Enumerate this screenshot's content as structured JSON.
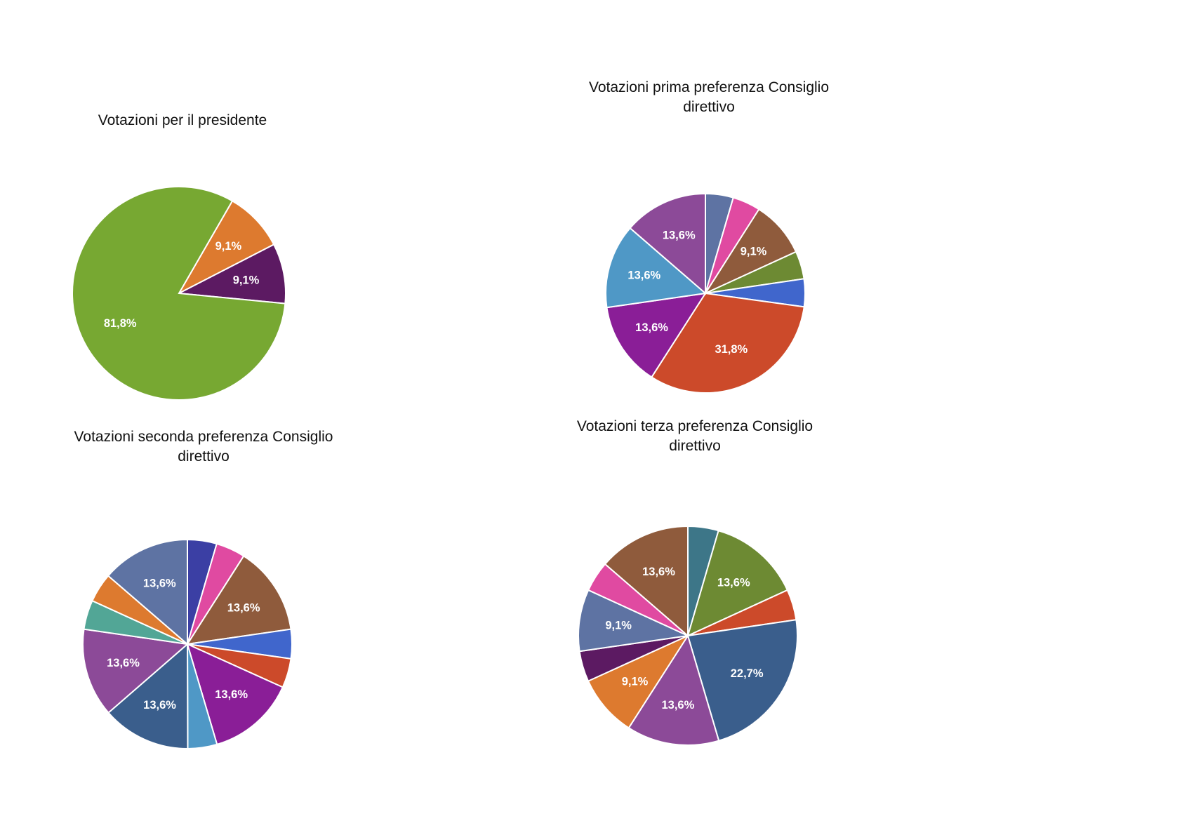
{
  "chart_data": [
    {
      "type": "pie",
      "title": "Votazioni per il presidente",
      "slices": [
        {
          "value": 9.1,
          "label": "9,1%",
          "color": "#dd7a2f"
        },
        {
          "value": 9.1,
          "label": "9,1%",
          "color": "#5c1a62"
        },
        {
          "value": 81.8,
          "label": "81,8%",
          "color": "#77a832"
        }
      ]
    },
    {
      "type": "pie",
      "title": "Votazioni prima preferenza Consiglio\ndirettivo",
      "slices": [
        {
          "value": 4.5,
          "label": "",
          "color": "#5e73a3"
        },
        {
          "value": 4.5,
          "label": "",
          "color": "#e04aa1"
        },
        {
          "value": 9.1,
          "label": "9,1%",
          "color": "#8f5b3c"
        },
        {
          "value": 4.5,
          "label": "",
          "color": "#6d8a33"
        },
        {
          "value": 4.5,
          "label": "",
          "color": "#4066cc"
        },
        {
          "value": 31.8,
          "label": "31,8%",
          "color": "#cc4a2a"
        },
        {
          "value": 13.6,
          "label": "13,6%",
          "color": "#8a1e97"
        },
        {
          "value": 13.6,
          "label": "13,6%",
          "color": "#4f98c6"
        },
        {
          "value": 13.6,
          "label": "13,6%",
          "color": "#8c4a98"
        }
      ]
    },
    {
      "type": "pie",
      "title": "Votazioni seconda preferenza Consiglio\ndirettivo",
      "slices": [
        {
          "value": 4.5,
          "label": "",
          "color": "#3b3fa4"
        },
        {
          "value": 4.5,
          "label": "",
          "color": "#e04aa1"
        },
        {
          "value": 13.6,
          "label": "13,6%",
          "color": "#8f5b3c"
        },
        {
          "value": 4.5,
          "label": "",
          "color": "#4066cc"
        },
        {
          "value": 4.5,
          "label": "",
          "color": "#cc4a2a"
        },
        {
          "value": 13.6,
          "label": "13,6%",
          "color": "#8a1e97"
        },
        {
          "value": 4.5,
          "label": "",
          "color": "#4f98c6"
        },
        {
          "value": 13.6,
          "label": "13,6%",
          "color": "#3a5e8c"
        },
        {
          "value": 13.6,
          "label": "13,6%",
          "color": "#8c4a98"
        },
        {
          "value": 4.5,
          "label": "",
          "color": "#52a696"
        },
        {
          "value": 4.5,
          "label": "",
          "color": "#dd7a2f"
        },
        {
          "value": 13.6,
          "label": "13,6%",
          "color": "#5e73a3"
        }
      ]
    },
    {
      "type": "pie",
      "title": "Votazioni terza preferenza Consiglio\ndirettivo",
      "slices": [
        {
          "value": 4.5,
          "label": "",
          "color": "#3d7688"
        },
        {
          "value": 13.6,
          "label": "13,6%",
          "color": "#6d8a33"
        },
        {
          "value": 4.5,
          "label": "",
          "color": "#cc4a2a"
        },
        {
          "value": 22.7,
          "label": "22,7%",
          "color": "#3a5e8c"
        },
        {
          "value": 13.6,
          "label": "13,6%",
          "color": "#8c4a98"
        },
        {
          "value": 9.1,
          "label": "9,1%",
          "color": "#dd7a2f"
        },
        {
          "value": 4.5,
          "label": "",
          "color": "#5c1a62"
        },
        {
          "value": 9.1,
          "label": "9,1%",
          "color": "#5e73a3"
        },
        {
          "value": 4.5,
          "label": "",
          "color": "#e04aa1"
        },
        {
          "value": 13.6,
          "label": "13,6%",
          "color": "#8f5b3c"
        }
      ]
    }
  ]
}
